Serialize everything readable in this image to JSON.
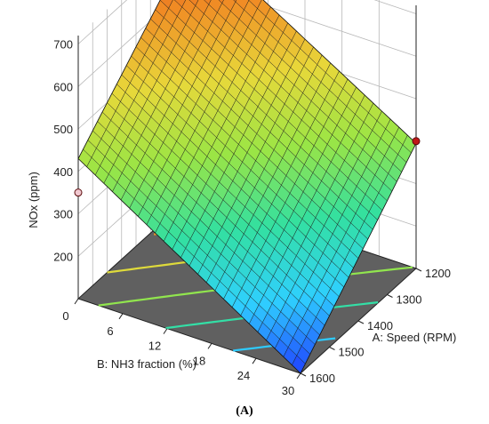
{
  "chart_data": {
    "type": "surface3d",
    "title": "",
    "zlabel": "NOx (ppm)",
    "xlabel": "B: NH3 fraction (%)",
    "ylabel": "A: Speed (RPM)",
    "z_ticks": [
      "200",
      "300",
      "400",
      "500",
      "600",
      "700"
    ],
    "x_ticks": [
      "0",
      "6",
      "12",
      "18",
      "24",
      "30"
    ],
    "y_ticks": [
      "1200",
      "1300",
      "1400",
      "1500",
      "1600"
    ],
    "zlim": [
      100,
      720
    ],
    "xlim": [
      0,
      30
    ],
    "ylim": [
      1200,
      1600
    ],
    "surface_corners": [
      {
        "nh3": 0,
        "speed": 1200,
        "nox": 710
      },
      {
        "nh3": 30,
        "speed": 1200,
        "nox": 395
      },
      {
        "nh3": 0,
        "speed": 1600,
        "nox": 430
      },
      {
        "nh3": 30,
        "speed": 1600,
        "nox": 100
      }
    ],
    "design_points": [
      {
        "nh3": 0,
        "speed": 1200,
        "nox": 710,
        "position": "above"
      },
      {
        "nh3": 30,
        "speed": 1200,
        "nox": 400,
        "position": "above"
      },
      {
        "nh3": 0,
        "speed": 1600,
        "nox": 350,
        "position": "below"
      },
      {
        "nh3": 30,
        "speed": 1600,
        "nox": 120,
        "position": "below"
      },
      {
        "nh3": 24,
        "speed": 1600,
        "nox": 280,
        "position": "below"
      }
    ],
    "colormap": [
      "#1f3fff",
      "#2fd0ff",
      "#33e0a0",
      "#9be545",
      "#e8d83a",
      "#f08a24",
      "#e03a1e"
    ],
    "grid": true
  },
  "panel_label": "(A)"
}
